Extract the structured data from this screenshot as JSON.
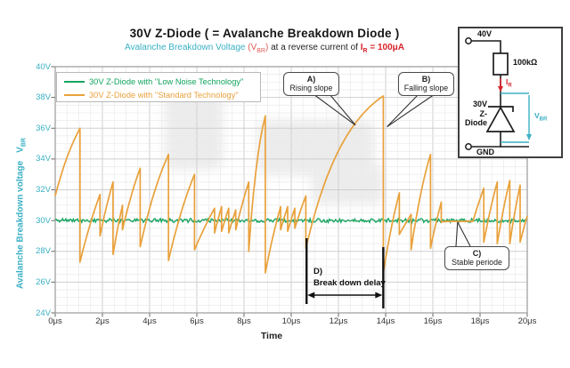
{
  "header": {
    "title": "30V Z-Diode ( = Avalanche Breakdown Diode )",
    "subtitle_cyan": "Avalanche Breakdown Voltage ",
    "subtitle_vbr_pre": "(V",
    "subtitle_vbr_sub": "BR",
    "subtitle_vbr_post": ")",
    "subtitle_black": " at a reverse current of ",
    "subtitle_red_pre": "I",
    "subtitle_red_sub": "R",
    "subtitle_red_post": " = 100μA"
  },
  "axes": {
    "y_title": "Avalanche Breakdown voltage",
    "y_symbol": "V",
    "y_symbol_sub": "BR",
    "x_title": "Time"
  },
  "annotations": {
    "a": {
      "tag": "A)",
      "text": "Rising slope",
      "target_t": 12.72,
      "target_v": 36.2
    },
    "b": {
      "tag": "B)",
      "text": "Falling slope",
      "target_t": 14.06,
      "target_v": 36.1
    },
    "c": {
      "tag": "C)",
      "text": "Stable periode",
      "target_t": 17.05,
      "target_v": 29.9
    },
    "d": {
      "tag": "D)",
      "text": "Break down delay",
      "t_start": 10.65,
      "t_end": 13.9
    }
  },
  "circuit": {
    "supply": "40V",
    "resistor": "100kΩ",
    "current_pre": "I",
    "current_sub": "R",
    "diode_line1": "30V",
    "diode_line2": "Z-Diode",
    "voltage_pre": "V",
    "voltage_sub": "BR",
    "ground": "GND"
  },
  "colors": {
    "cyan": "#3ab0c4",
    "red": "#d8232a",
    "green": "#13a45e",
    "orange": "#e9a13b",
    "grid_major": "#cfcfcf",
    "grid_minor": "#eaeaea",
    "border": "#9a9a9a"
  },
  "chart_data": {
    "type": "line",
    "title": "30V Z-Diode ( = Avalanche Breakdown Diode )",
    "subtitle": "Avalanche Breakdown Voltage (VBR) at a reverse current of IR = 100μA",
    "xlabel": "Time",
    "ylabel": "Avalanche Breakdown voltage VBR",
    "x_unit": "μs",
    "y_unit": "V",
    "xlim": [
      0,
      20
    ],
    "ylim": [
      24,
      40
    ],
    "grid": true,
    "minor_step_x": 0.5,
    "minor_step_y": 0.5,
    "legend_position": "top-left",
    "x_ticks": [
      {
        "t": 0,
        "label": "0μs"
      },
      {
        "t": 2,
        "label": "2μs"
      },
      {
        "t": 4,
        "label": "4μs"
      },
      {
        "t": 6,
        "label": "6μs"
      },
      {
        "t": 8,
        "label": "8μs"
      },
      {
        "t": 10,
        "label": "10μs"
      },
      {
        "t": 12,
        "label": "12μs"
      },
      {
        "t": 14,
        "label": "14μs"
      },
      {
        "t": 16,
        "label": "16μs"
      },
      {
        "t": 18,
        "label": "18μs"
      },
      {
        "t": 20,
        "label": "20μs"
      }
    ],
    "y_ticks": [
      {
        "v": 40,
        "label": "40V"
      },
      {
        "v": 38,
        "label": "38V"
      },
      {
        "v": 36,
        "label": "36V"
      },
      {
        "v": 34,
        "label": "34V"
      },
      {
        "v": 32,
        "label": "32V"
      },
      {
        "v": 30,
        "label": "30V"
      },
      {
        "v": 28,
        "label": "28V"
      },
      {
        "v": 26,
        "label": "26V"
      },
      {
        "v": 24,
        "label": "24V"
      }
    ],
    "series": [
      {
        "name": "30V Z-Diode with \"Low Noise Technology\"",
        "color": "#13a45e",
        "type": "noisy-flat",
        "baseline": 30.0,
        "noise_pp": 0.26
      },
      {
        "name": "30V Z-Diode with \"Standard Technology\"",
        "color": "#e9a13b",
        "type": "sawtooth",
        "rise_asymptote": 40,
        "points": [
          [
            0,
            31.6
          ],
          [
            1.05,
            36.0
          ],
          [
            1.05,
            27.3
          ],
          [
            1.9,
            31.7
          ],
          [
            1.9,
            29.0
          ],
          [
            2.45,
            32.5
          ],
          [
            2.45,
            27.8
          ],
          [
            2.85,
            31.0
          ],
          [
            2.85,
            29.4
          ],
          [
            3.6,
            33.4
          ],
          [
            3.6,
            28.3
          ],
          [
            4.8,
            34.3
          ],
          [
            4.8,
            27.4
          ],
          [
            5.9,
            33.0
          ],
          [
            5.9,
            28.1
          ],
          [
            6.75,
            30.8
          ],
          [
            6.75,
            29.2
          ],
          [
            7.05,
            30.9
          ],
          [
            7.05,
            29.3
          ],
          [
            7.35,
            30.8
          ],
          [
            7.35,
            29.2
          ],
          [
            7.65,
            30.7
          ],
          [
            7.65,
            29.4
          ],
          [
            8.2,
            32.5
          ],
          [
            8.2,
            28.0
          ],
          [
            8.9,
            36.8
          ],
          [
            8.9,
            26.6
          ],
          [
            9.55,
            30.9
          ],
          [
            9.55,
            29.4
          ],
          [
            9.85,
            30.9
          ],
          [
            9.85,
            29.3
          ],
          [
            10.15,
            30.8
          ],
          [
            10.15,
            29.5
          ],
          [
            10.62,
            31.6
          ],
          [
            10.62,
            28.2
          ],
          [
            13.9,
            38.1
          ],
          [
            13.9,
            26.6
          ],
          [
            14.58,
            31.8
          ],
          [
            14.58,
            29.1
          ],
          [
            15.08,
            30.4
          ],
          [
            15.08,
            28.1
          ],
          [
            15.9,
            34.3
          ],
          [
            15.9,
            28.2
          ],
          [
            16.36,
            31.2
          ],
          [
            16.36,
            29.9
          ],
          [
            16.55,
            29.95
          ],
          [
            17.7,
            29.95
          ],
          [
            18.16,
            32.1
          ],
          [
            18.16,
            28.6
          ],
          [
            18.73,
            32.5
          ],
          [
            18.73,
            28.5
          ],
          [
            19.26,
            32.6
          ],
          [
            19.26,
            28.5
          ],
          [
            19.7,
            32.3
          ],
          [
            19.7,
            28.6
          ],
          [
            20,
            30.3
          ]
        ]
      }
    ]
  }
}
